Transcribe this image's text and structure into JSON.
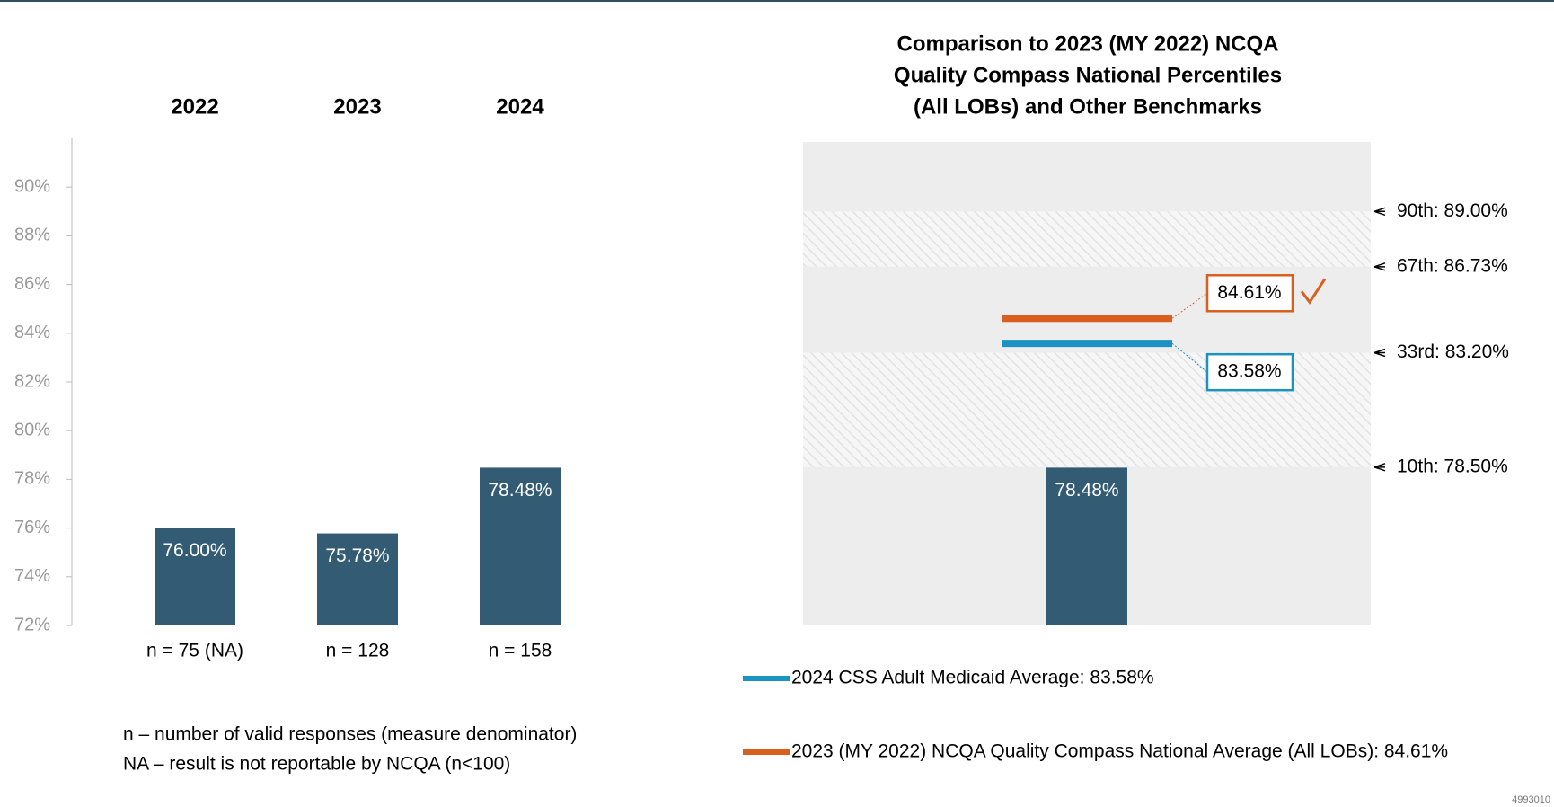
{
  "chart_data": [
    {
      "type": "bar",
      "categories": [
        "2022",
        "2023",
        "2024"
      ],
      "sample_sizes": [
        "n = 75 (NA)",
        "n = 128",
        "n = 158"
      ],
      "values": [
        76.0,
        75.78,
        78.48
      ],
      "value_labels": [
        "76.00%",
        "75.78%",
        "78.48%"
      ],
      "color": "#335b74",
      "ylim": [
        72,
        92
      ],
      "yticks": [
        {
          "value": 72,
          "label": "72%"
        },
        {
          "value": 74,
          "label": "74%"
        },
        {
          "value": 76,
          "label": "76%"
        },
        {
          "value": 78,
          "label": "78%"
        },
        {
          "value": 80,
          "label": "80%"
        },
        {
          "value": 82,
          "label": "82%"
        },
        {
          "value": 84,
          "label": "84%"
        },
        {
          "value": 86,
          "label": "86%"
        },
        {
          "value": 88,
          "label": "88%"
        },
        {
          "value": 90,
          "label": "90%"
        }
      ],
      "notes": [
        "n – number of valid responses (measure denominator)",
        "NA – result is not reportable by NCQA (n<100)"
      ]
    },
    {
      "type": "benchmark",
      "title": [
        "Comparison to 2023 (MY 2022) NCQA",
        "Quality Compass National Percentiles",
        "(All LOBs) and Other Benchmarks"
      ],
      "values": [
        78.48
      ],
      "value_labels": [
        "78.48%"
      ],
      "color": "#335b74",
      "ylim": [
        72,
        92
      ],
      "percentiles": [
        {
          "value": 89.0,
          "label": "90th: 89.00%"
        },
        {
          "value": 86.73,
          "label": "67th: 86.73%"
        },
        {
          "value": 83.2,
          "label": "33rd: 83.20%"
        },
        {
          "value": 78.5,
          "label": "10th: 78.50%"
        }
      ],
      "series": [
        {
          "name": "2024 CSS Adult Medicaid Average: 83.58%",
          "color": "#1a93c4",
          "values": [
            83.58
          ],
          "value_labels": [
            "83.58%"
          ]
        },
        {
          "name": "2023 (MY 2022) NCQA Quality Compass National Average (All LOBs): 84.61%",
          "color": "#d95f1e",
          "values": [
            84.61
          ],
          "value_labels": [
            "84.61%"
          ]
        }
      ]
    }
  ],
  "footer": "4993010"
}
